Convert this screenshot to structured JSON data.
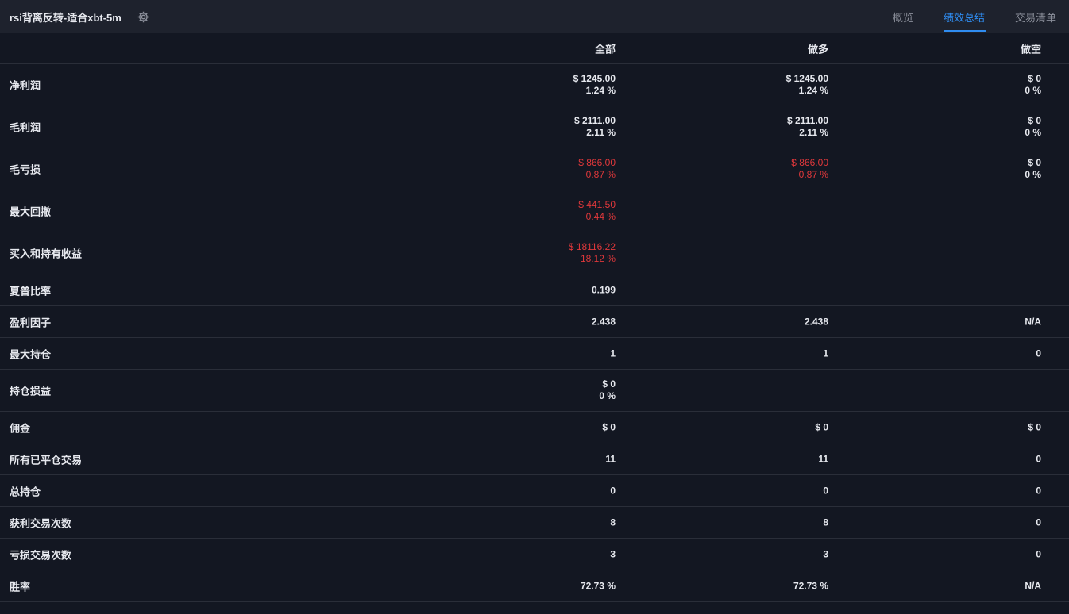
{
  "header": {
    "title": "rsi背离反转-适合xbt-5m",
    "settings_icon": "gear-icon",
    "tabs": [
      {
        "label": "概览",
        "active": false
      },
      {
        "label": "绩效总结",
        "active": true
      },
      {
        "label": "交易清单",
        "active": false
      }
    ]
  },
  "table": {
    "columns": [
      "全部",
      "做多",
      "做空"
    ],
    "rows": [
      {
        "label": "净利润",
        "all": [
          "$ 1245.00",
          "1.24 %"
        ],
        "long": [
          "$ 1245.00",
          "1.24 %"
        ],
        "short": [
          "$ 0",
          "0 %"
        ]
      },
      {
        "label": "毛利润",
        "all": [
          "$ 2111.00",
          "2.11 %"
        ],
        "long": [
          "$ 2111.00",
          "2.11 %"
        ],
        "short": [
          "$ 0",
          "0 %"
        ]
      },
      {
        "label": "毛亏损",
        "all": [
          "$ 866.00",
          "0.87 %"
        ],
        "long": [
          "$ 866.00",
          "0.87 %"
        ],
        "short": [
          "$ 0",
          "0 %"
        ]
      },
      {
        "label": "最大回撤",
        "all": [
          "$ 441.50",
          "0.44 %"
        ]
      },
      {
        "label": "买入和持有收益",
        "all": [
          "$ 18116.22",
          "18.12 %"
        ]
      },
      {
        "label": "夏普比率",
        "all": "0.199"
      },
      {
        "label": "盈利因子",
        "all": "2.438",
        "long": "2.438",
        "short": "N/A"
      },
      {
        "label": "最大持仓",
        "all": "1",
        "long": "1",
        "short": "0"
      },
      {
        "label": "持仓损益",
        "all": [
          "$ 0",
          "0 %"
        ]
      },
      {
        "label": "佣金",
        "all": "$ 0",
        "long": "$ 0",
        "short": "$ 0"
      },
      {
        "label": "所有已平仓交易",
        "all": "11",
        "long": "11",
        "short": "0"
      },
      {
        "label": "总持仓",
        "all": "0",
        "long": "0",
        "short": "0"
      },
      {
        "label": "获利交易次数",
        "all": "8",
        "long": "8",
        "short": "0"
      },
      {
        "label": "亏损交易次数",
        "all": "3",
        "long": "3",
        "short": "0"
      },
      {
        "label": "胜率",
        "all": "72.73 %",
        "long": "72.73 %",
        "short": "N/A"
      }
    ]
  },
  "colors": {
    "background": "#131722",
    "topbar": "#1e222d",
    "accent": "#2f8cf0",
    "negative": "#e0383b",
    "text": "#e6e8ee"
  }
}
